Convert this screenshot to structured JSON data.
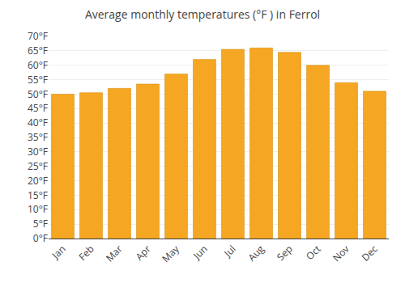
{
  "chart_data": {
    "type": "bar",
    "title": "Average monthly temperatures (°F ) in Ferrol",
    "categories": [
      "Jan",
      "Feb",
      "Mar",
      "Apr",
      "May",
      "Jun",
      "Jul",
      "Aug",
      "Sep",
      "Oct",
      "Nov",
      "Dec"
    ],
    "values": [
      50,
      50.5,
      52,
      53.5,
      57,
      62,
      65.5,
      66,
      64.5,
      60,
      54,
      51
    ],
    "color": "#F5A623",
    "ylim": [
      0,
      70
    ],
    "yticks": [
      {
        "value": 0,
        "label": "0°F"
      },
      {
        "value": 5,
        "label": "5°F"
      },
      {
        "value": 10,
        "label": "10°F"
      },
      {
        "value": 15,
        "label": "15°F"
      },
      {
        "value": 20,
        "label": "20°F"
      },
      {
        "value": 25,
        "label": "25°F"
      },
      {
        "value": 30,
        "label": "30°F"
      },
      {
        "value": 35,
        "label": "35°F"
      },
      {
        "value": 40,
        "label": "40°F"
      },
      {
        "value": 45,
        "label": "45°F"
      },
      {
        "value": 50,
        "label": "50°F"
      },
      {
        "value": 55,
        "label": "55°F"
      },
      {
        "value": 60,
        "label": "60°F"
      },
      {
        "value": 65,
        "label": "65°F"
      },
      {
        "value": 70,
        "label": "70°F"
      }
    ],
    "grid": true
  }
}
